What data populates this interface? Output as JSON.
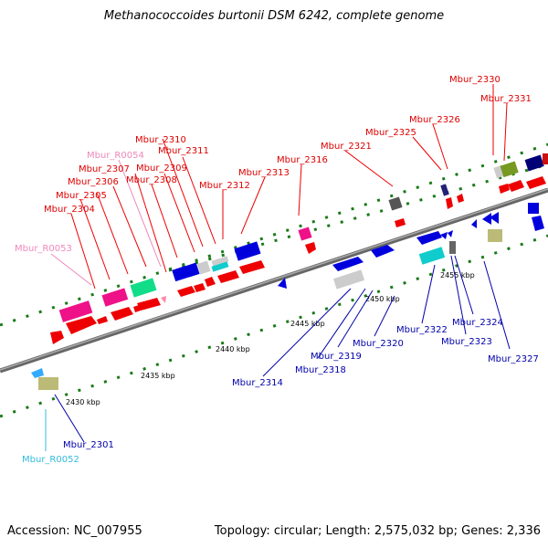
{
  "title": "Methanococcoides burtonii DSM 6242, complete genome",
  "footer": {
    "accession": "Accession: NC_007955",
    "stats": "Topology: circular; Length: 2,575,032 bp; Genes: 2,336"
  },
  "scale_labels": [
    "2430 kbp",
    "2435 kbp",
    "2440 kbp",
    "2445 kbp",
    "2450 kbp",
    "2455 kbp"
  ],
  "gene_labels": [
    {
      "id": "Mbur_2330",
      "color": "#dd0000"
    },
    {
      "id": "Mbur_2331",
      "color": "#dd0000"
    },
    {
      "id": "Mbur_2326",
      "color": "#dd0000"
    },
    {
      "id": "Mbur_2325",
      "color": "#dd0000"
    },
    {
      "id": "Mbur_2321",
      "color": "#dd0000"
    },
    {
      "id": "Mbur_2316",
      "color": "#dd0000"
    },
    {
      "id": "Mbur_2313",
      "color": "#dd0000"
    },
    {
      "id": "Mbur_2312",
      "color": "#dd0000"
    },
    {
      "id": "Mbur_2310",
      "color": "#dd0000"
    },
    {
      "id": "Mbur_2311",
      "color": "#dd0000"
    },
    {
      "id": "Mbur_R0054",
      "color": "#ee88bb"
    },
    {
      "id": "Mbur_2309",
      "color": "#dd0000"
    },
    {
      "id": "Mbur_2307",
      "color": "#dd0000"
    },
    {
      "id": "Mbur_2308",
      "color": "#dd0000"
    },
    {
      "id": "Mbur_2306",
      "color": "#dd0000"
    },
    {
      "id": "Mbur_2305",
      "color": "#dd0000"
    },
    {
      "id": "Mbur_2304",
      "color": "#dd0000"
    },
    {
      "id": "Mbur_R0053",
      "color": "#ee88bb"
    },
    {
      "id": "Mbur_2301",
      "color": "#0000aa"
    },
    {
      "id": "Mbur_R0052",
      "color": "#33bbdd"
    },
    {
      "id": "Mbur_2314",
      "color": "#0000aa"
    },
    {
      "id": "Mbur_2318",
      "color": "#0000aa"
    },
    {
      "id": "Mbur_2319",
      "color": "#0000aa"
    },
    {
      "id": "Mbur_2320",
      "color": "#0000aa"
    },
    {
      "id": "Mbur_2322",
      "color": "#0000aa"
    },
    {
      "id": "Mbur_2324",
      "color": "#0000aa"
    },
    {
      "id": "Mbur_2323",
      "color": "#0000aa"
    },
    {
      "id": "Mbur_2327",
      "color": "#0000aa"
    }
  ],
  "colors": {
    "backbone": "#888888",
    "tick": "#1a7a1a",
    "forward_cds": "#ee0000",
    "reverse_cds": "#0000dd",
    "rna_pink": "#ee1188",
    "rna_green": "#11dd88",
    "rna_cyan": "#11cccc",
    "gray_feature": "#cccccc",
    "olive_feature": "#bbbb77"
  }
}
